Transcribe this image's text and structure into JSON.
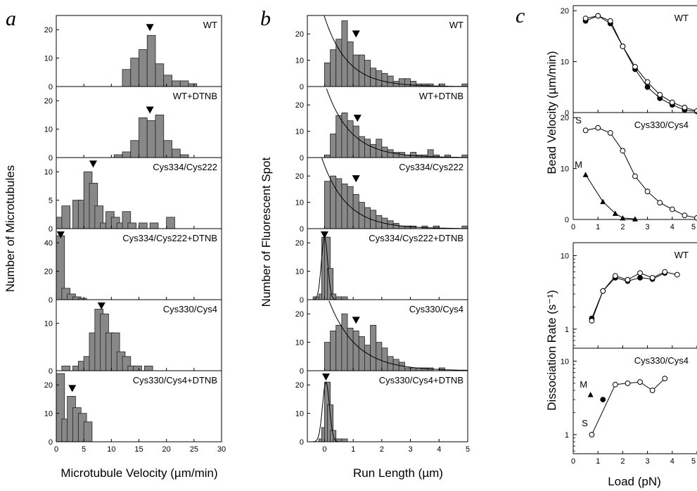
{
  "figure": {
    "panel_labels": [
      "a",
      "b",
      "c"
    ]
  },
  "chart_data": [
    {
      "type": "bar",
      "id": "a",
      "ylabel": "Number of Microtubules",
      "xlabel": "Microtubule Velocity  (µm/min)",
      "xlim": [
        0,
        30
      ],
      "xticks": [
        0,
        5,
        10,
        15,
        20,
        25,
        30
      ],
      "bin_width": 1.5,
      "subplots": [
        {
          "label": "WT",
          "ylim": [
            0,
            25
          ],
          "yticks": [
            0,
            10,
            20
          ],
          "marker": 17,
          "bars": [
            [
              12,
              6
            ],
            [
              13.5,
              10
            ],
            [
              15,
              13
            ],
            [
              16.5,
              18
            ],
            [
              18,
              8
            ],
            [
              19.5,
              4
            ],
            [
              21,
              2
            ],
            [
              22.5,
              2
            ],
            [
              24,
              1
            ]
          ]
        },
        {
          "label": "WT+DTNB",
          "ylim": [
            0,
            25
          ],
          "yticks": [
            0,
            10,
            20
          ],
          "marker": 17,
          "bars": [
            [
              10.5,
              1
            ],
            [
              12,
              2
            ],
            [
              13.5,
              6
            ],
            [
              15,
              14
            ],
            [
              16.5,
              13
            ],
            [
              18,
              15
            ],
            [
              19.5,
              6
            ],
            [
              21,
              3
            ],
            [
              22.5,
              1
            ]
          ]
        },
        {
          "label": "Cys334/Cys222",
          "ylim": [
            0,
            12.5
          ],
          "yticks": [
            0,
            5,
            10
          ],
          "marker": 6.7,
          "bars": [
            [
              0,
              2
            ],
            [
              1,
              4
            ],
            [
              3,
              5
            ],
            [
              4,
              5
            ],
            [
              5,
              10
            ],
            [
              6,
              8
            ],
            [
              7,
              4
            ],
            [
              8,
              1
            ],
            [
              9,
              3
            ],
            [
              10,
              2
            ],
            [
              11,
              1
            ],
            [
              12,
              3
            ],
            [
              13,
              1
            ],
            [
              15,
              1
            ],
            [
              17,
              1
            ],
            [
              20,
              2
            ]
          ]
        },
        {
          "label": "Cys334/Cys222+DTNB",
          "ylim": [
            0,
            50
          ],
          "yticks": [
            0,
            20,
            40
          ],
          "marker": 0.8,
          "bars": [
            [
              0,
              45
            ],
            [
              1,
              8
            ],
            [
              2,
              4
            ],
            [
              3,
              2
            ],
            [
              4,
              1
            ]
          ]
        },
        {
          "label": "Cys330/Cys4",
          "ylim": [
            0,
            15
          ],
          "yticks": [
            0,
            10
          ],
          "marker": 8.2,
          "bars": [
            [
              1,
              1
            ],
            [
              3,
              1
            ],
            [
              4,
              2
            ],
            [
              5,
              3
            ],
            [
              6,
              8
            ],
            [
              7,
              13
            ],
            [
              8,
              12
            ],
            [
              9,
              8
            ],
            [
              10,
              8
            ],
            [
              11,
              4
            ],
            [
              12,
              3
            ],
            [
              13,
              1
            ],
            [
              14,
              1
            ],
            [
              16,
              1
            ]
          ]
        },
        {
          "label": "Cys330/Cys4+DTNB",
          "ylim": [
            0,
            25
          ],
          "yticks": [
            0,
            10,
            20
          ],
          "marker": 2.9,
          "bars": [
            [
              0,
              24
            ],
            [
              1,
              8
            ],
            [
              2,
              16
            ],
            [
              3,
              12
            ],
            [
              4,
              10
            ],
            [
              5,
              7
            ]
          ]
        }
      ]
    },
    {
      "type": "bar",
      "id": "b",
      "ylabel": "Number of Fluorescent Spot",
      "xlabel": "Run Length  (µm)",
      "xlim": [
        -0.6,
        5
      ],
      "xticks": [
        0,
        1,
        2,
        3,
        4,
        5
      ],
      "bin_width": 0.2,
      "subplots": [
        {
          "label": "WT",
          "ylim": [
            0,
            27
          ],
          "yticks": [
            0,
            10,
            20
          ],
          "marker": 1.1,
          "fit": {
            "kind": "exp",
            "a": 30,
            "tau": 0.8,
            "x0": -0.1
          },
          "bars": [
            [
              0,
              9
            ],
            [
              0.2,
              14
            ],
            [
              0.4,
              18
            ],
            [
              0.6,
              25
            ],
            [
              0.8,
              17
            ],
            [
              1.0,
              12
            ],
            [
              1.2,
              12
            ],
            [
              1.4,
              10
            ],
            [
              1.6,
              7
            ],
            [
              1.8,
              6
            ],
            [
              2.0,
              5
            ],
            [
              2.2,
              4
            ],
            [
              2.4,
              2
            ],
            [
              2.6,
              3
            ],
            [
              2.8,
              3
            ],
            [
              3.0,
              2
            ],
            [
              3.2,
              1
            ],
            [
              3.4,
              1
            ],
            [
              3.6,
              1
            ],
            [
              4.0,
              1
            ],
            [
              4.8,
              1
            ]
          ]
        },
        {
          "label": "WT+DTNB",
          "ylim": [
            0,
            27
          ],
          "yticks": [
            0,
            10,
            20
          ],
          "marker": 1.15,
          "fit": {
            "kind": "exp",
            "a": 36,
            "tau": 0.85,
            "x0": -0.2
          },
          "bars": [
            [
              0,
              1
            ],
            [
              0.2,
              9
            ],
            [
              0.4,
              16
            ],
            [
              0.6,
              17
            ],
            [
              0.8,
              14
            ],
            [
              1.0,
              12
            ],
            [
              1.2,
              8
            ],
            [
              1.4,
              7
            ],
            [
              1.6,
              5
            ],
            [
              1.8,
              7
            ],
            [
              2.0,
              4
            ],
            [
              2.2,
              3
            ],
            [
              2.4,
              2
            ],
            [
              2.6,
              2
            ],
            [
              2.8,
              1
            ],
            [
              3.0,
              2
            ],
            [
              3.2,
              1
            ],
            [
              3.4,
              1
            ],
            [
              3.6,
              3
            ],
            [
              3.8,
              1
            ],
            [
              4.2,
              1
            ],
            [
              4.8,
              1
            ]
          ]
        },
        {
          "label": "Cys334/Cys222",
          "ylim": [
            0,
            27
          ],
          "yticks": [
            0,
            10,
            20
          ],
          "marker": 1.1,
          "fit": {
            "kind": "exp",
            "a": 24,
            "tau": 0.85,
            "x0": 0
          },
          "bars": [
            [
              0,
              18
            ],
            [
              0.2,
              20
            ],
            [
              0.4,
              19
            ],
            [
              0.6,
              17
            ],
            [
              0.8,
              16
            ],
            [
              1.0,
              13
            ],
            [
              1.2,
              10
            ],
            [
              1.4,
              8
            ],
            [
              1.6,
              7
            ],
            [
              1.8,
              5
            ],
            [
              2.0,
              4
            ],
            [
              2.2,
              3
            ],
            [
              2.4,
              2
            ],
            [
              2.6,
              1
            ],
            [
              2.8,
              1
            ],
            [
              3.0,
              1
            ],
            [
              3.4,
              1
            ],
            [
              3.8,
              1
            ],
            [
              4.8,
              1
            ]
          ]
        },
        {
          "label": "Cys334/Cys222+DTNB",
          "ylim": [
            0,
            25
          ],
          "yticks": [
            0,
            10,
            20
          ],
          "marker": 0.0,
          "fit": {
            "kind": "gauss",
            "a": 22,
            "mu": 0,
            "sigma": 0.11
          },
          "bars": [
            [
              -0.4,
              1
            ],
            [
              -0.2,
              2
            ],
            [
              -0.1,
              22
            ],
            [
              0.0,
              22
            ],
            [
              0.1,
              11
            ],
            [
              0.2,
              2
            ],
            [
              0.4,
              1
            ],
            [
              0.6,
              1
            ]
          ]
        },
        {
          "label": "Cys330/Cys4",
          "ylim": [
            0,
            25
          ],
          "yticks": [
            0,
            10,
            20
          ],
          "marker": 1.1,
          "fit": {
            "kind": "exp",
            "a": 34,
            "tau": 0.95,
            "x0": -0.15
          },
          "bars": [
            [
              0,
              10
            ],
            [
              0.2,
              14
            ],
            [
              0.4,
              16
            ],
            [
              0.6,
              20
            ],
            [
              0.8,
              15
            ],
            [
              1.0,
              14
            ],
            [
              1.2,
              12
            ],
            [
              1.4,
              9
            ],
            [
              1.6,
              16
            ],
            [
              1.8,
              10
            ],
            [
              2.0,
              8
            ],
            [
              2.2,
              5
            ],
            [
              2.4,
              4
            ],
            [
              2.6,
              3
            ],
            [
              2.8,
              1
            ],
            [
              3.0,
              1
            ],
            [
              3.2,
              1
            ],
            [
              3.4,
              1
            ],
            [
              3.6,
              1
            ],
            [
              4.0,
              1
            ]
          ]
        },
        {
          "label": "Cys330/Cys4+DTNB",
          "ylim": [
            0,
            25
          ],
          "yticks": [
            0,
            10,
            20
          ],
          "marker": 0.05,
          "fit": {
            "kind": "gauss",
            "a": 21,
            "mu": 0.05,
            "sigma": 0.12
          },
          "bars": [
            [
              -0.2,
              1
            ],
            [
              -0.1,
              5
            ],
            [
              0.0,
              21
            ],
            [
              0.1,
              13
            ],
            [
              0.2,
              4
            ],
            [
              0.3,
              1
            ],
            [
              0.4,
              1
            ],
            [
              0.6,
              1
            ]
          ]
        }
      ]
    },
    {
      "type": "line",
      "id": "c_top",
      "ylabel": "Bead Velocity  (µm/min)",
      "xlim": [
        0,
        5
      ],
      "subplots": [
        {
          "label": "WT",
          "ylim": [
            0,
            21
          ],
          "yticks": [
            0,
            10,
            20
          ],
          "series": [
            {
              "marker": "filled",
              "x": [
                0.5,
                1.0,
                1.5,
                2.0,
                2.5,
                3.0,
                3.5,
                4.0,
                4.5,
                5.0
              ],
              "y": [
                18,
                19,
                17.5,
                13,
                8.5,
                5,
                2.8,
                1.5,
                0.5,
                0.2
              ]
            },
            {
              "marker": "open",
              "x": [
                0.5,
                1.0,
                1.5,
                2.0,
                2.5,
                3.0,
                3.5,
                4.0,
                4.5,
                5.0
              ],
              "y": [
                18.5,
                19,
                18,
                13,
                9,
                6,
                3.5,
                2,
                1,
                0.3
              ]
            }
          ]
        },
        {
          "label": "Cys330/Cys4",
          "ylim": [
            0,
            21
          ],
          "yticks": [
            0,
            10,
            20
          ],
          "series": [
            {
              "name": "S",
              "marker": "open",
              "x": [
                0.5,
                1.0,
                1.5,
                2.0,
                2.5,
                3.0,
                3.5,
                4.0,
                4.5,
                5.0
              ],
              "y": [
                17.5,
                18,
                17,
                13.5,
                8.5,
                5.5,
                3.3,
                2,
                0.8,
                0.3
              ]
            },
            {
              "name": "M",
              "marker": "triangle",
              "x": [
                0.5,
                1.2,
                1.7,
                2.0,
                2.5
              ],
              "y": [
                8.8,
                3.5,
                1.2,
                0.3,
                0.1
              ]
            }
          ]
        }
      ]
    },
    {
      "type": "line",
      "id": "c_bottom",
      "ylabel": "Dissociation Rate  (s⁻¹)",
      "xlabel": "Load  (pN)",
      "xlim": [
        0,
        5
      ],
      "xticks": [
        0,
        1,
        2,
        3,
        4,
        5
      ],
      "yscale": "log",
      "subplots": [
        {
          "label": "WT",
          "ylim": [
            0.55,
            15
          ],
          "yticks": [
            1,
            10
          ],
          "series": [
            {
              "marker": "filled",
              "x": [
                0.75,
                1.2,
                1.7,
                2.2,
                2.7,
                3.2,
                3.7
              ],
              "y": [
                1.4,
                3.3,
                5,
                4.5,
                5,
                4.8,
                5.8
              ]
            },
            {
              "marker": "open",
              "x": [
                0.75,
                1.2,
                1.7,
                2.2,
                2.7,
                3.2,
                3.7,
                4.2
              ],
              "y": [
                1.3,
                3.3,
                5.3,
                4.7,
                5.8,
                5,
                6,
                5.5
              ]
            }
          ]
        },
        {
          "label": "Cys330/Cys4",
          "ylim": [
            0.55,
            15
          ],
          "yticks": [
            1,
            10
          ],
          "series": [
            {
              "name": "M",
              "marker": "triangle",
              "x": [
                0.7
              ],
              "y": [
                3.5
              ]
            },
            {
              "name": "S",
              "marker": "open",
              "x": [
                0.75,
                1.7,
                2.2,
                2.7,
                3.2,
                3.7
              ],
              "y": [
                1.0,
                4.8,
                5,
                5.2,
                4,
                5.8
              ]
            },
            {
              "marker": "filled",
              "x": [
                1.2
              ],
              "y": [
                3.0
              ]
            }
          ]
        }
      ]
    }
  ]
}
